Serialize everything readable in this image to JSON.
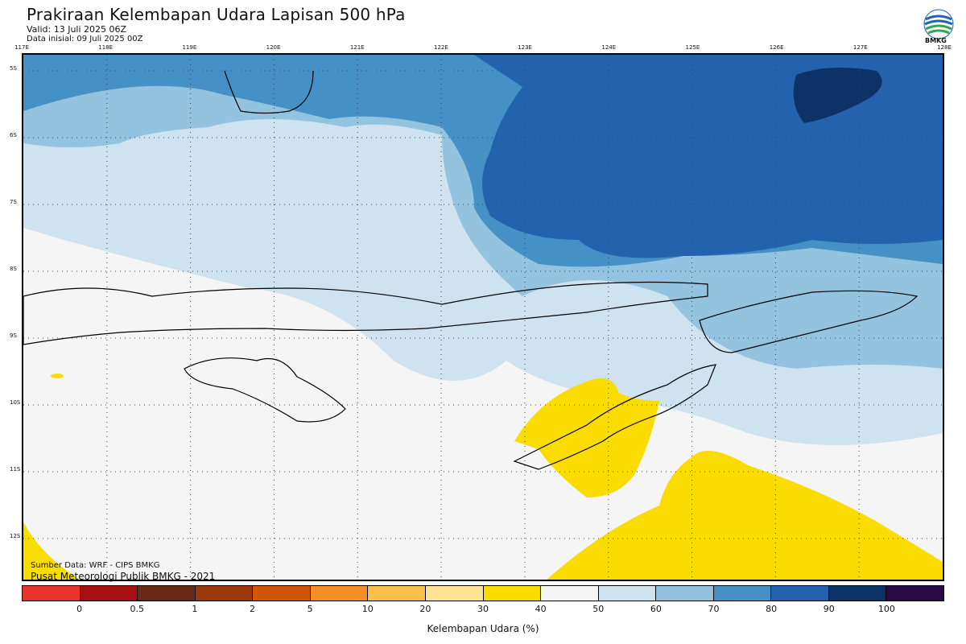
{
  "header": {
    "title": "Prakiraan Kelembapan Udara Lapisan 500 hPa",
    "valid": "Valid: 13 Juli 2025 06Z",
    "data_initial": "Data inisial: 09 Juli 2025 00Z",
    "logo_text": "BMKG"
  },
  "map": {
    "lon_labels": [
      "117E",
      "118E",
      "119E",
      "120E",
      "121E",
      "122E",
      "123E",
      "124E",
      "125E",
      "126E",
      "127E",
      "128E"
    ],
    "lat_labels": [
      "5S",
      "6S",
      "7S",
      "8S",
      "9S",
      "10S",
      "11S",
      "12S"
    ],
    "credits": [
      "Sumber Data: WRF - CIPS BMKG",
      "Pusat Meteorologi Publik BMKG - 2021"
    ]
  },
  "colorbar": {
    "colors": [
      "#e8352c",
      "#a80f14",
      "#6b2812",
      "#9a3a0a",
      "#d2560a",
      "#f49027",
      "#fbbf4f",
      "#fde494",
      "#fbdc00",
      "#f5f5f5",
      "#cfe2ef",
      "#93c3df",
      "#4590c4",
      "#2462ad",
      "#0c3268",
      "#2a0a45"
    ],
    "ticks": [
      "0",
      "0.5",
      "1",
      "2",
      "5",
      "10",
      "20",
      "30",
      "40",
      "50",
      "60",
      "70",
      "80",
      "90",
      "100"
    ],
    "label": "Kelembapan Udara (%)"
  }
}
